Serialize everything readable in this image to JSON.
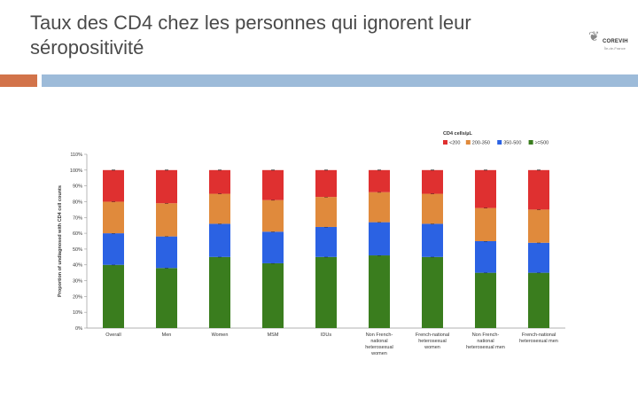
{
  "slide": {
    "title": "Taux des CD4 chez les personnes qui ignorent leur séropositivité",
    "accent_orange": "#d2734a",
    "accent_blue": "#9dbbd9",
    "logo_text": "COREVIH",
    "logo_sub": "Île-de-France"
  },
  "chart_data": {
    "type": "bar",
    "stacked": true,
    "ylabel": "Proportion of undiagnosed with CD4 cell counts",
    "ylim": [
      0,
      110
    ],
    "yticks": [
      0,
      10,
      20,
      30,
      40,
      50,
      60,
      70,
      80,
      90,
      100,
      110
    ],
    "ytick_labels": [
      "0%",
      "10%",
      "20%",
      "30%",
      "40%",
      "50%",
      "60%",
      "70%",
      "80%",
      "90%",
      "100%",
      "110%"
    ],
    "legend_title": "CD4 cells/µL",
    "legend_position": "top-right",
    "categories": [
      [
        "Overall"
      ],
      [
        "Men"
      ],
      [
        "Women"
      ],
      [
        "MSM"
      ],
      [
        "IDUs"
      ],
      [
        "Non French-",
        "national",
        "heterosexual",
        "women"
      ],
      [
        "French-national",
        "heterosexual",
        "women"
      ],
      [
        "Non French-",
        "national",
        "heterosexual men"
      ],
      [
        "French-national",
        "heterosexual men"
      ]
    ],
    "series": [
      {
        "name": ">=500",
        "color": "#3a7d1e",
        "values": [
          40,
          38,
          45,
          41,
          45,
          46,
          45,
          35,
          35
        ]
      },
      {
        "name": "350-500",
        "color": "#2b62e3",
        "values": [
          20,
          20,
          21,
          20,
          19,
          21,
          21,
          20,
          19
        ]
      },
      {
        "name": "200-350",
        "color": "#e08a3c",
        "values": [
          20,
          21,
          19,
          20,
          19,
          19,
          19,
          21,
          21
        ]
      },
      {
        "name": "<200",
        "color": "#df3030",
        "values": [
          20,
          21,
          15,
          19,
          17,
          14,
          15,
          24,
          25
        ]
      }
    ],
    "legend_order": [
      "<200",
      "200-350",
      "350-500",
      ">=500"
    ]
  }
}
